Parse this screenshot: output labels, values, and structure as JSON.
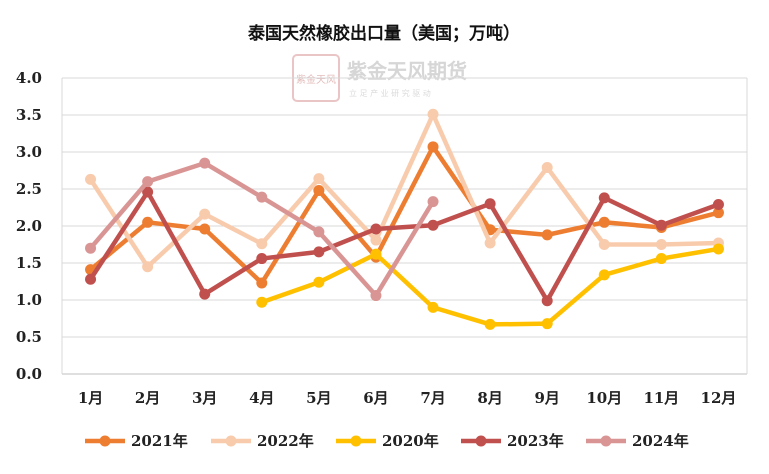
{
  "chart_data": {
    "type": "line",
    "title": "泰国天然橡胶出口量（美国；万吨）",
    "categories": [
      "1月",
      "2月",
      "3月",
      "4月",
      "5月",
      "6月",
      "7月",
      "8月",
      "9月",
      "10月",
      "11月",
      "12月"
    ],
    "ylim": [
      0,
      4.0
    ],
    "yticks": [
      "0.0",
      "0.5",
      "1.0",
      "1.5",
      "2.0",
      "2.5",
      "3.0",
      "3.5",
      "4.0"
    ],
    "grid": true,
    "legend_position": "bottom",
    "series": [
      {
        "name": "2021年",
        "color": "#ED7D31",
        "values": [
          1.41,
          2.05,
          1.96,
          1.23,
          2.48,
          1.58,
          3.07,
          1.95,
          1.88,
          2.05,
          1.98,
          2.18
        ]
      },
      {
        "name": "2022年",
        "color": "#F8CBAD",
        "values": [
          2.63,
          1.45,
          2.16,
          1.76,
          2.64,
          1.81,
          3.51,
          1.77,
          2.79,
          1.75,
          1.75,
          1.77
        ]
      },
      {
        "name": "2020年",
        "color": "#FFC000",
        "values": [
          null,
          null,
          null,
          0.97,
          1.24,
          1.62,
          0.9,
          0.67,
          0.68,
          1.34,
          1.56,
          1.69
        ]
      },
      {
        "name": "2023年",
        "color": "#C0504D",
        "values": [
          1.28,
          2.46,
          1.08,
          1.56,
          1.65,
          1.96,
          2.01,
          2.3,
          0.99,
          2.38,
          2.01,
          2.29
        ]
      },
      {
        "name": "2024年",
        "color": "#D99594",
        "values": [
          1.7,
          2.6,
          2.85,
          2.39,
          1.92,
          1.06,
          2.33,
          null,
          null,
          null,
          null,
          null
        ]
      }
    ]
  },
  "watermark": {
    "logo_text": "紫金天风",
    "name": "紫金天风期货",
    "slogan": "立 足 产 业   研 究 驱 动"
  }
}
